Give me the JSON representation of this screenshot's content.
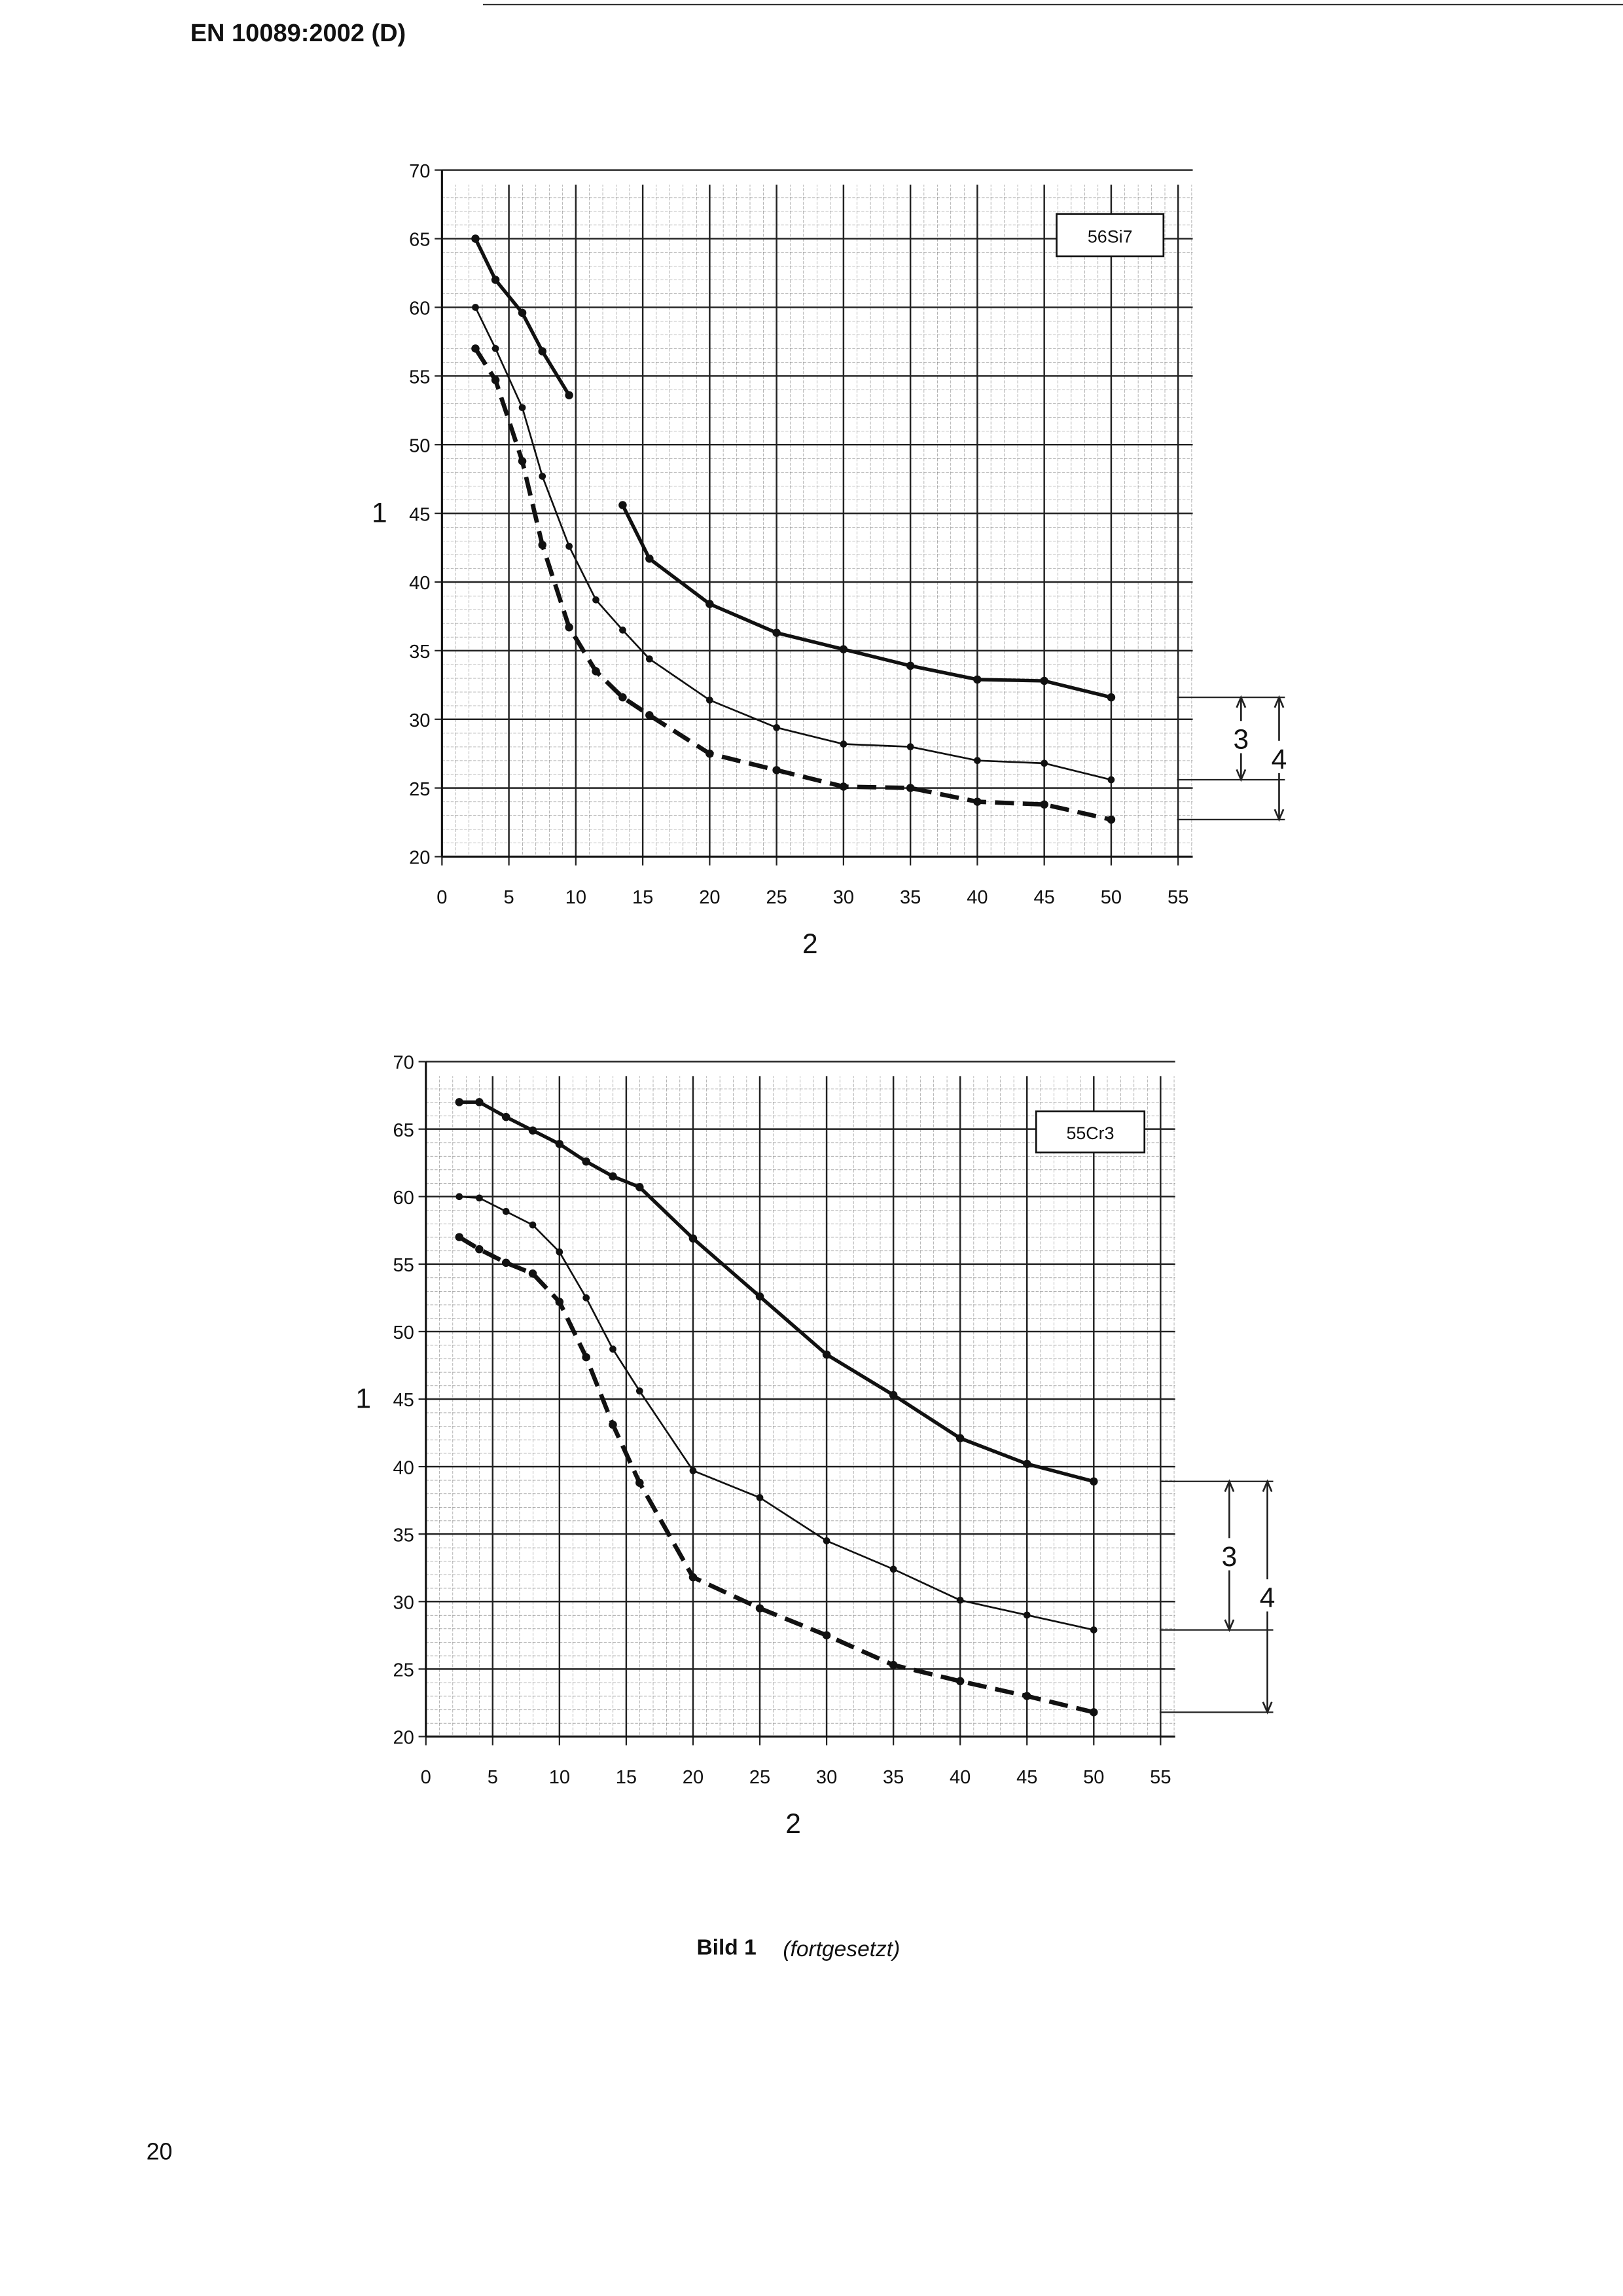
{
  "header": "EN 10089:2002 (D)",
  "chart_data": [
    {
      "type": "line",
      "label": "56Si7",
      "ylabel": "1",
      "xlabel": "2",
      "annotations": [
        "3",
        "4"
      ],
      "x": [
        2.5,
        4,
        6,
        7.5,
        9.5,
        11.5,
        13.5,
        15.5,
        20,
        25,
        30,
        35,
        40,
        45,
        50
      ],
      "series": [
        {
          "color": "#111",
          "line_style": "bold",
          "values": [
            65,
            62,
            59.6,
            56.8,
            53.6,
            null,
            45.6,
            41.7,
            38.4,
            36.3,
            35.1,
            33.9,
            32.9,
            32.8,
            31.6
          ]
        },
        {
          "color": "#111",
          "line_style": "thin",
          "values": [
            60,
            57,
            52.7,
            47.7,
            42.6,
            38.7,
            36.5,
            34.4,
            31.4,
            29.4,
            28.2,
            28,
            27,
            26.8,
            25.6
          ]
        },
        {
          "color": "#111",
          "line_style": "dashed",
          "values": [
            57,
            54.7,
            48.8,
            42.7,
            36.7,
            33.5,
            31.6,
            30.3,
            27.5,
            26.3,
            25.1,
            25,
            24,
            23.8,
            22.7
          ]
        }
      ],
      "xlim": [
        0,
        55
      ],
      "ylim": [
        20,
        70
      ],
      "xticks": [
        0,
        5,
        10,
        15,
        20,
        25,
        30,
        35,
        40,
        45,
        50,
        55
      ],
      "yticks": [
        20,
        25,
        30,
        35,
        40,
        45,
        50,
        55,
        60,
        65,
        70
      ],
      "grid": true
    },
    {
      "type": "line",
      "label": "55Cr3",
      "ylabel": "1",
      "xlabel": "2",
      "annotations": [
        "3",
        "4"
      ],
      "x": [
        2.5,
        4,
        6,
        8,
        10,
        12,
        14,
        16,
        20,
        25,
        30,
        35,
        40,
        45,
        50
      ],
      "series": [
        {
          "color": "#111",
          "line_style": "bold",
          "values": [
            67,
            67,
            65.9,
            64.9,
            63.9,
            62.6,
            61.5,
            60.7,
            56.9,
            52.6,
            48.3,
            45.3,
            42.1,
            40.2,
            38.9
          ]
        },
        {
          "color": "#111",
          "line_style": "thin",
          "values": [
            60,
            59.9,
            58.9,
            57.9,
            55.9,
            52.5,
            48.7,
            45.6,
            39.7,
            37.7,
            34.5,
            32.4,
            30.1,
            29,
            27.9
          ]
        },
        {
          "color": "#111",
          "line_style": "dashed",
          "values": [
            57,
            56.1,
            55.1,
            54.3,
            52.2,
            48.1,
            43.1,
            38.8,
            31.8,
            29.5,
            27.5,
            25.3,
            24.1,
            23,
            21.8
          ]
        }
      ],
      "xlim": [
        0,
        55
      ],
      "ylim": [
        20,
        70
      ],
      "xticks": [
        0,
        5,
        10,
        15,
        20,
        25,
        30,
        35,
        40,
        45,
        50,
        55
      ],
      "yticks": [
        20,
        25,
        30,
        35,
        40,
        45,
        50,
        55,
        60,
        65,
        70
      ],
      "grid": true
    }
  ],
  "caption": {
    "label": "Bild 1",
    "note": "(fortgesetzt)"
  },
  "page_number": "20"
}
